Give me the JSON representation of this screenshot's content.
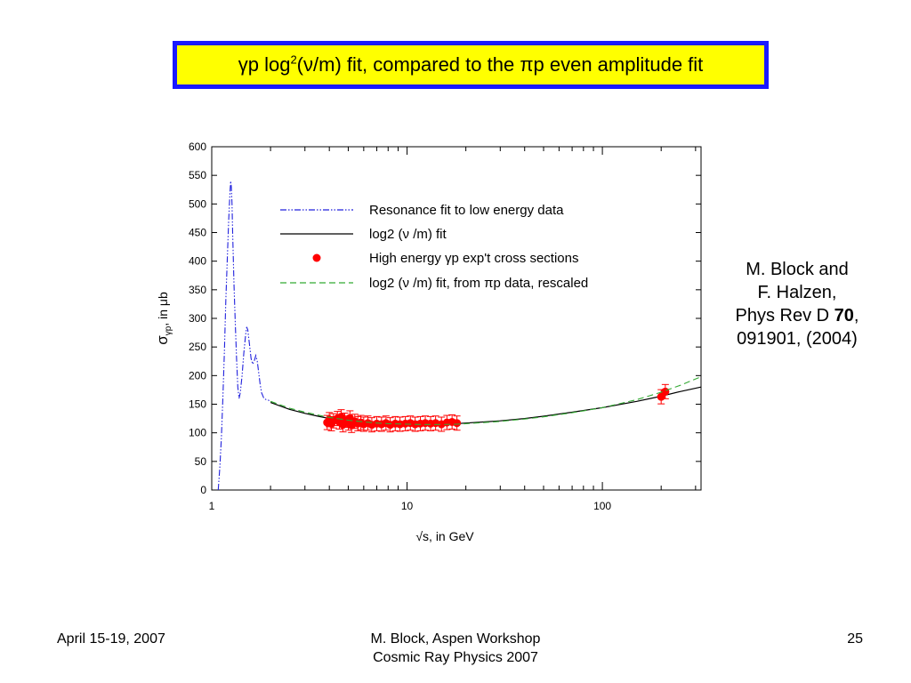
{
  "slide": {
    "title_parts": {
      "gamma": "γ",
      "p_log": "p log",
      "sup2": "2",
      "open": "(",
      "nu": "ν",
      "mid": "/m) fit, compared to the ",
      "pi": "π",
      "end": "p even amplitude fit"
    },
    "citation": {
      "line1": "M. Block and",
      "line2": "F. Halzen,",
      "line3_prefix": "Phys Rev D ",
      "line3_bold": "70",
      "line3_suffix": ",",
      "line4": "091901, (2004)"
    },
    "footer": {
      "date": "April 15-19, 2007",
      "center_line1": "M. Block, Aspen Workshop",
      "center_line2": "Cosmic Ray Physics 2007",
      "page": "25"
    }
  },
  "chart_data": {
    "type": "scatter",
    "x_scale": "log",
    "xlim": [
      1,
      320
    ],
    "ylim": [
      0,
      600
    ],
    "ylabel_parts": {
      "sigma": "σ",
      "sub": "γp",
      "rest": ", in μb"
    },
    "xlabel_parts": {
      "root": "√",
      "rest": "s, in GeV"
    },
    "x_ticks": [
      1,
      10,
      100
    ],
    "x_tick_labels": [
      "1",
      "10",
      "100"
    ],
    "y_ticks": [
      0,
      50,
      100,
      150,
      200,
      250,
      300,
      350,
      400,
      450,
      500,
      550,
      600
    ],
    "y_tick_labels": [
      "0",
      "50",
      "100",
      "150",
      "200",
      "250",
      "300",
      "350",
      "400",
      "450",
      "500",
      "550",
      "600"
    ],
    "legend_position": "top-right",
    "series": [
      {
        "name": "Resonance fit to low energy data",
        "kind": "line",
        "style": "dash-dot-dot",
        "color": "#2222dd",
        "x": [
          1.08,
          1.1,
          1.12,
          1.14,
          1.16,
          1.18,
          1.2,
          1.22,
          1.24,
          1.25,
          1.26,
          1.27,
          1.28,
          1.3,
          1.32,
          1.34,
          1.36,
          1.38,
          1.4,
          1.43,
          1.46,
          1.49,
          1.51,
          1.53,
          1.56,
          1.59,
          1.62,
          1.65,
          1.68,
          1.71,
          1.74,
          1.77,
          1.8,
          1.85,
          1.9,
          1.95,
          2.0
        ],
        "y": [
          0,
          40,
          90,
          160,
          240,
          330,
          400,
          470,
          520,
          540,
          530,
          500,
          450,
          360,
          290,
          230,
          180,
          160,
          170,
          200,
          240,
          270,
          285,
          280,
          255,
          230,
          220,
          225,
          235,
          225,
          205,
          185,
          170,
          160,
          158,
          157,
          155
        ]
      },
      {
        "name": "log2 (ν /m) fit",
        "kind": "line",
        "style": "solid",
        "color": "#000000",
        "x": [
          2,
          2.5,
          3,
          3.5,
          4,
          5,
          6,
          7,
          8,
          10,
          12,
          15,
          18,
          20,
          25,
          30,
          40,
          50,
          70,
          100,
          150,
          200,
          250,
          320
        ],
        "y": [
          153,
          141,
          134,
          129,
          125,
          121,
          118,
          117,
          116,
          115,
          115,
          115.5,
          116,
          117,
          119,
          121,
          125,
          129,
          136,
          144,
          155,
          164,
          172,
          180
        ]
      },
      {
        "name": "High energy γp exp't cross sections",
        "kind": "points",
        "color": "#ff0000",
        "x": [
          3.9,
          4.0,
          4.1,
          4.2,
          4.4,
          4.5,
          4.6,
          4.7,
          4.8,
          5.0,
          5.1,
          5.2,
          5.4,
          5.6,
          5.8,
          6.0,
          6.3,
          6.6,
          7.0,
          7.4,
          7.8,
          8.2,
          8.7,
          9.2,
          9.8,
          10.4,
          11.0,
          11.7,
          12.4,
          13.2,
          14.0,
          15.0,
          16.0,
          17.0,
          18.0,
          200,
          210
        ],
        "y": [
          118,
          123,
          116,
          121,
          125,
          119,
          128,
          114,
          122,
          117,
          126,
          113,
          120,
          116,
          118,
          115,
          117,
          114,
          116,
          115,
          117,
          114,
          116,
          115,
          116,
          117,
          115,
          116,
          117,
          116,
          117,
          115,
          118,
          119,
          117,
          163,
          172
        ]
      },
      {
        "name": "log2 (ν /m) fit, from πp data, rescaled",
        "kind": "line",
        "style": "dashed",
        "color": "#33aa33",
        "x": [
          2,
          2.5,
          3,
          3.5,
          4,
          5,
          6,
          7,
          8,
          10,
          12,
          15,
          18,
          20,
          25,
          30,
          40,
          50,
          70,
          100,
          150,
          200,
          250,
          320
        ],
        "y": [
          155,
          143,
          136,
          131,
          127,
          122,
          119,
          117,
          116,
          115,
          114.5,
          114.5,
          115,
          116,
          118,
          120,
          124,
          128,
          135,
          144,
          158,
          171,
          183,
          198
        ]
      }
    ]
  }
}
